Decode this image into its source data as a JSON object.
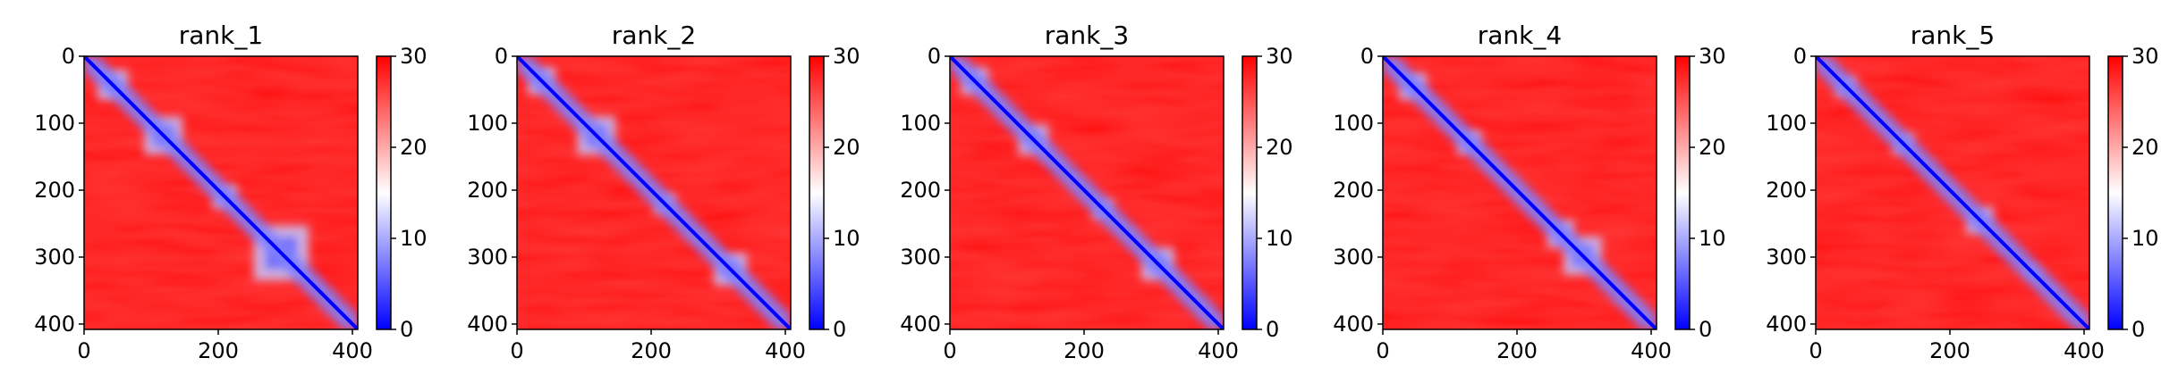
{
  "chart_data": [
    {
      "type": "heatmap",
      "title": "rank_1",
      "xlabel": "",
      "ylabel": "",
      "x_ticks": [
        0,
        200,
        400
      ],
      "y_ticks": [
        0,
        100,
        200,
        300,
        400
      ],
      "xlim": [
        0,
        408
      ],
      "ylim": [
        408,
        0
      ],
      "colorbar": {
        "ticks": [
          0,
          10,
          20,
          30
        ],
        "range": [
          0,
          30
        ],
        "colormap": "bwr"
      }
    },
    {
      "type": "heatmap",
      "title": "rank_2",
      "xlabel": "",
      "ylabel": "",
      "x_ticks": [
        0,
        200,
        400
      ],
      "y_ticks": [
        0,
        100,
        200,
        300,
        400
      ],
      "xlim": [
        0,
        408
      ],
      "ylim": [
        408,
        0
      ],
      "colorbar": {
        "ticks": [
          0,
          10,
          20,
          30
        ],
        "range": [
          0,
          30
        ],
        "colormap": "bwr"
      }
    },
    {
      "type": "heatmap",
      "title": "rank_3",
      "xlabel": "",
      "ylabel": "",
      "x_ticks": [
        0,
        200,
        400
      ],
      "y_ticks": [
        0,
        100,
        200,
        300,
        400
      ],
      "xlim": [
        0,
        408
      ],
      "ylim": [
        408,
        0
      ],
      "colorbar": {
        "ticks": [
          0,
          10,
          20,
          30
        ],
        "range": [
          0,
          30
        ],
        "colormap": "bwr"
      }
    },
    {
      "type": "heatmap",
      "title": "rank_4",
      "xlabel": "",
      "ylabel": "",
      "x_ticks": [
        0,
        200,
        400
      ],
      "y_ticks": [
        0,
        100,
        200,
        300,
        400
      ],
      "xlim": [
        0,
        408
      ],
      "ylim": [
        408,
        0
      ],
      "colorbar": {
        "ticks": [
          0,
          10,
          20,
          30
        ],
        "range": [
          0,
          30
        ],
        "colormap": "bwr"
      }
    },
    {
      "type": "heatmap",
      "title": "rank_5",
      "xlabel": "",
      "ylabel": "",
      "x_ticks": [
        0,
        200,
        400
      ],
      "y_ticks": [
        0,
        100,
        200,
        300,
        400
      ],
      "xlim": [
        0,
        408
      ],
      "ylim": [
        408,
        0
      ],
      "colorbar": {
        "ticks": [
          0,
          10,
          20,
          30
        ],
        "range": [
          0,
          30
        ],
        "colormap": "bwr"
      }
    }
  ],
  "colors": {
    "low": "#0000ff",
    "mid": "#ffffff",
    "high": "#ff0000"
  }
}
